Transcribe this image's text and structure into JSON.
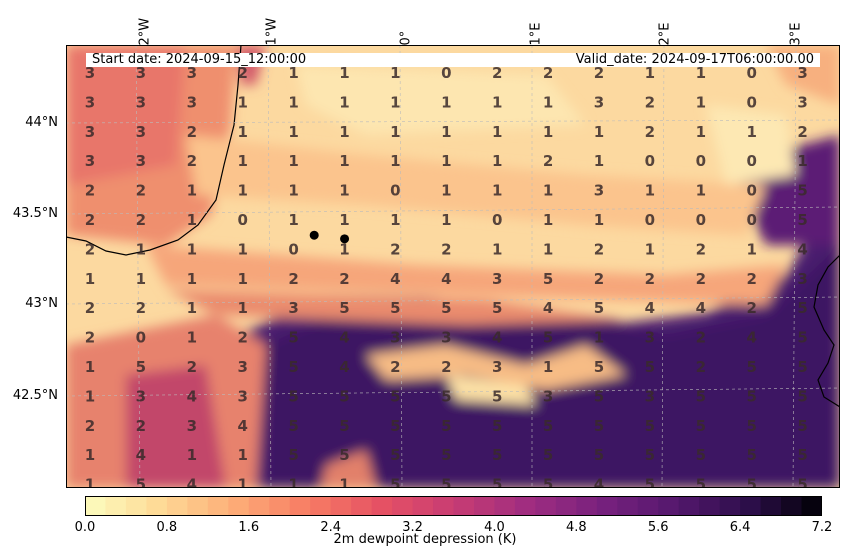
{
  "header": {
    "start_label": "Start date: 2024-09-15_12:00:00",
    "valid_label": "Valid_date: 2024-09-17T06:00:00.00"
  },
  "axes": {
    "lon_labels": [
      "2°W",
      "1°W",
      "0°",
      "1°E",
      "2°E",
      "3°E"
    ],
    "lat_labels": [
      "44°N",
      "43.5°N",
      "43°N",
      "42.5°N"
    ]
  },
  "colorbar": {
    "label": "2m dewpoint depression (K)",
    "ticks": [
      "0.0",
      "0.8",
      "1.6",
      "2.4",
      "3.2",
      "4.0",
      "4.8",
      "5.6",
      "6.4",
      "7.2"
    ],
    "min": 0.0,
    "max": 7.2,
    "step": 0.2,
    "colormap": "magma_r"
  },
  "markers": [
    {
      "name": "station-1",
      "lon": -0.65,
      "lat": 43.38
    },
    {
      "name": "station-2",
      "lon": -0.42,
      "lat": 43.36
    }
  ],
  "grid_values": [
    [
      3,
      3,
      3,
      2,
      1,
      1,
      1,
      0,
      2,
      2,
      2,
      1,
      1,
      0,
      3
    ],
    [
      3,
      3,
      3,
      1,
      1,
      1,
      1,
      1,
      1,
      1,
      3,
      2,
      1,
      0,
      3
    ],
    [
      3,
      3,
      2,
      1,
      1,
      1,
      1,
      1,
      1,
      1,
      1,
      2,
      1,
      1,
      2
    ],
    [
      3,
      3,
      2,
      1,
      1,
      1,
      1,
      1,
      1,
      2,
      1,
      0,
      0,
      0,
      1
    ],
    [
      2,
      2,
      1,
      1,
      1,
      1,
      0,
      1,
      1,
      1,
      3,
      1,
      1,
      0,
      5
    ],
    [
      2,
      2,
      1,
      0,
      1,
      1,
      1,
      1,
      0,
      1,
      1,
      0,
      0,
      0,
      5
    ],
    [
      2,
      1,
      1,
      1,
      0,
      1,
      2,
      2,
      1,
      1,
      2,
      1,
      2,
      1,
      4
    ],
    [
      1,
      1,
      1,
      1,
      2,
      2,
      4,
      4,
      3,
      5,
      2,
      2,
      2,
      2,
      3
    ],
    [
      2,
      2,
      1,
      1,
      3,
      5,
      5,
      5,
      5,
      4,
      5,
      4,
      4,
      2,
      5
    ],
    [
      2,
      0,
      1,
      2,
      5,
      4,
      3,
      3,
      4,
      5,
      1,
      3,
      2,
      4,
      5
    ],
    [
      1,
      5,
      2,
      3,
      5,
      4,
      2,
      2,
      3,
      1,
      5,
      5,
      2,
      5,
      5
    ],
    [
      1,
      3,
      4,
      3,
      5,
      5,
      5,
      5,
      5,
      3,
      5,
      3,
      5,
      5,
      5
    ],
    [
      2,
      2,
      3,
      4,
      5,
      5,
      5,
      5,
      5,
      5,
      5,
      5,
      5,
      5,
      5
    ],
    [
      1,
      4,
      1,
      1,
      5,
      5,
      5,
      5,
      5,
      5,
      5,
      5,
      5,
      5,
      5
    ],
    [
      1,
      5,
      4,
      1,
      1,
      1,
      5,
      5,
      5,
      5,
      4,
      5,
      5,
      5,
      5
    ]
  ]
}
